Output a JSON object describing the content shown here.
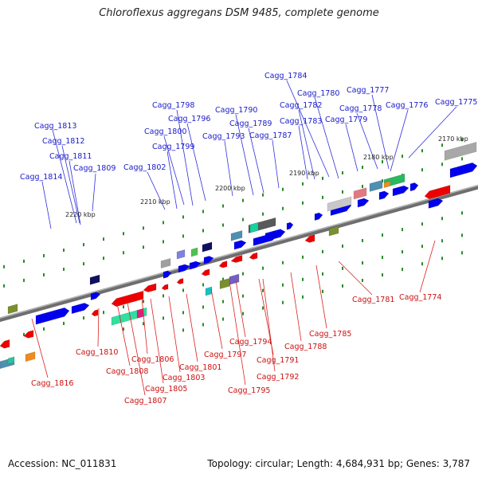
{
  "title": "Chloroflexus aggregans DSM 9485, complete genome",
  "footer": {
    "accession": "Accession: NC_011831",
    "summary": "Topology: circular; Length: 4,684,931 bp; Genes: 3,787"
  },
  "colors": {
    "forward_gene": "#0000ee",
    "reverse_gene": "#ee0000",
    "forward_label": "#1a1acc",
    "reverse_label": "#cc1111",
    "axis": "#888888",
    "tick": "#2a8a2a"
  },
  "scale_labels": [
    "2170 kbp",
    "2180 kbp",
    "2190 kbp",
    "2200 kbp",
    "2210 kbp",
    "2220 kbp"
  ],
  "top_genes": [
    "Cagg_1784",
    "Cagg_1780",
    "Cagg_1777",
    "Cagg_1775",
    "Cagg_1782",
    "Cagg_1778",
    "Cagg_1776",
    "Cagg_1798",
    "Cagg_1790",
    "Cagg_1783",
    "Cagg_1779",
    "Cagg_1796",
    "Cagg_1789",
    "Cagg_1813",
    "Cagg_1800",
    "Cagg_1793",
    "Cagg_1787",
    "Cagg_1812",
    "Cagg_1799",
    "Cagg_1811",
    "Cagg_1809",
    "Cagg_1802",
    "Cagg_1814"
  ],
  "bottom_genes": [
    "Cagg_1774",
    "Cagg_1781",
    "Cagg_1785",
    "Cagg_1794",
    "Cagg_1788",
    "Cagg_1810",
    "Cagg_1806",
    "Cagg_1797",
    "Cagg_1791",
    "Cagg_1808",
    "Cagg_1801",
    "Cagg_1792",
    "Cagg_1803",
    "Cagg_1816",
    "Cagg_1805",
    "Cagg_1795",
    "Cagg_1807"
  ]
}
